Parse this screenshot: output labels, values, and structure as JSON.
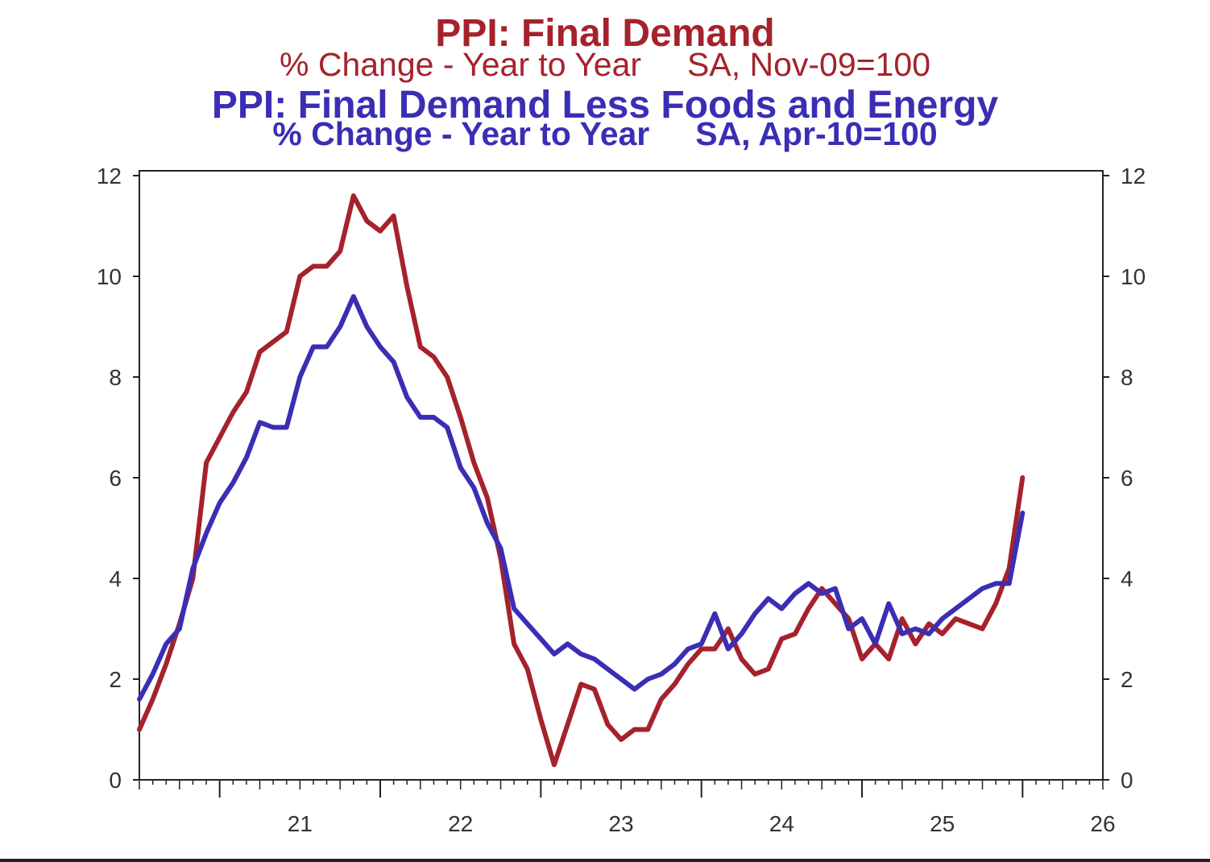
{
  "chart_data": {
    "type": "line",
    "title_1": "PPI: Final Demand",
    "subtitle_1": "% Change - Year to Year     SA, Nov-09=100",
    "title_2": "PPI: Final Demand Less Foods and Energy",
    "subtitle_2": "% Change - Year to Year     SA, Apr-10=100",
    "x_tick_labels": [
      "21",
      "22",
      "23",
      "24",
      "25",
      "26"
    ],
    "y_tick_labels": [
      "0",
      "2",
      "4",
      "6",
      "8",
      "10",
      "12"
    ],
    "ylim": [
      0,
      12
    ],
    "xlim": [
      "2020-07",
      "2026-07"
    ],
    "grid": false,
    "series": [
      {
        "name": "PPI: Final Demand",
        "color": "#a5222c",
        "points": [
          [
            "2020-07",
            1.0
          ],
          [
            "2020-08",
            1.6
          ],
          [
            "2020-09",
            2.3
          ],
          [
            "2020-10",
            3.1
          ],
          [
            "2020-11",
            4.0
          ],
          [
            "2020-12",
            6.3
          ],
          [
            "2021-01",
            6.8
          ],
          [
            "2021-02",
            7.3
          ],
          [
            "2021-03",
            7.7
          ],
          [
            "2021-04",
            8.5
          ],
          [
            "2021-05",
            8.7
          ],
          [
            "2021-06",
            8.9
          ],
          [
            "2021-07",
            10.0
          ],
          [
            "2021-08",
            10.2
          ],
          [
            "2021-09",
            10.2
          ],
          [
            "2021-10",
            10.5
          ],
          [
            "2021-11",
            11.6
          ],
          [
            "2021-12",
            11.1
          ],
          [
            "2022-01",
            10.9
          ],
          [
            "2022-02",
            11.2
          ],
          [
            "2022-03",
            9.8
          ],
          [
            "2022-04",
            8.6
          ],
          [
            "2022-05",
            8.4
          ],
          [
            "2022-06",
            8.0
          ],
          [
            "2022-07",
            7.2
          ],
          [
            "2022-08",
            6.3
          ],
          [
            "2022-09",
            5.6
          ],
          [
            "2022-10",
            4.4
          ],
          [
            "2022-11",
            2.7
          ],
          [
            "2022-12",
            2.2
          ],
          [
            "2023-01",
            1.2
          ],
          [
            "2023-02",
            0.3
          ],
          [
            "2023-03",
            1.1
          ],
          [
            "2023-04",
            1.9
          ],
          [
            "2023-05",
            1.8
          ],
          [
            "2023-06",
            1.1
          ],
          [
            "2023-07",
            0.8
          ],
          [
            "2023-08",
            1.0
          ],
          [
            "2023-09",
            1.0
          ],
          [
            "2023-10",
            1.6
          ],
          [
            "2023-11",
            1.9
          ],
          [
            "2023-12",
            2.3
          ],
          [
            "2024-01",
            2.6
          ],
          [
            "2024-02",
            2.6
          ],
          [
            "2024-03",
            3.0
          ],
          [
            "2024-04",
            2.4
          ],
          [
            "2024-05",
            2.1
          ],
          [
            "2024-06",
            2.2
          ],
          [
            "2024-07",
            2.8
          ],
          [
            "2024-08",
            2.9
          ],
          [
            "2024-09",
            3.4
          ],
          [
            "2024-10",
            3.8
          ],
          [
            "2024-11",
            3.5
          ],
          [
            "2024-12",
            3.2
          ],
          [
            "2025-01",
            2.4
          ],
          [
            "2025-02",
            2.7
          ],
          [
            "2025-03",
            2.4
          ],
          [
            "2025-04",
            3.2
          ],
          [
            "2025-05",
            2.7
          ],
          [
            "2025-06",
            3.1
          ],
          [
            "2025-07",
            2.9
          ],
          [
            "2025-08",
            3.2
          ],
          [
            "2025-09",
            3.1
          ],
          [
            "2025-10",
            3.0
          ],
          [
            "2025-11",
            3.5
          ],
          [
            "2025-12",
            4.2
          ],
          [
            "2026-01",
            6.0
          ]
        ]
      },
      {
        "name": "PPI: Final Demand Less Foods and Energy",
        "color": "#3a2eb4",
        "points": [
          [
            "2020-07",
            1.6
          ],
          [
            "2020-08",
            2.1
          ],
          [
            "2020-09",
            2.7
          ],
          [
            "2020-10",
            3.0
          ],
          [
            "2020-11",
            4.2
          ],
          [
            "2020-12",
            4.9
          ],
          [
            "2021-01",
            5.5
          ],
          [
            "2021-02",
            5.9
          ],
          [
            "2021-03",
            6.4
          ],
          [
            "2021-04",
            7.1
          ],
          [
            "2021-05",
            7.0
          ],
          [
            "2021-06",
            7.0
          ],
          [
            "2021-07",
            8.0
          ],
          [
            "2021-08",
            8.6
          ],
          [
            "2021-09",
            8.6
          ],
          [
            "2021-10",
            9.0
          ],
          [
            "2021-11",
            9.6
          ],
          [
            "2021-12",
            9.0
          ],
          [
            "2022-01",
            8.6
          ],
          [
            "2022-02",
            8.3
          ],
          [
            "2022-03",
            7.6
          ],
          [
            "2022-04",
            7.2
          ],
          [
            "2022-05",
            7.2
          ],
          [
            "2022-06",
            7.0
          ],
          [
            "2022-07",
            6.2
          ],
          [
            "2022-08",
            5.8
          ],
          [
            "2022-09",
            5.1
          ],
          [
            "2022-10",
            4.6
          ],
          [
            "2022-11",
            3.4
          ],
          [
            "2022-12",
            3.1
          ],
          [
            "2023-01",
            2.8
          ],
          [
            "2023-02",
            2.5
          ],
          [
            "2023-03",
            2.7
          ],
          [
            "2023-04",
            2.5
          ],
          [
            "2023-05",
            2.4
          ],
          [
            "2023-06",
            2.2
          ],
          [
            "2023-07",
            2.0
          ],
          [
            "2023-08",
            1.8
          ],
          [
            "2023-09",
            2.0
          ],
          [
            "2023-10",
            2.1
          ],
          [
            "2023-11",
            2.3
          ],
          [
            "2023-12",
            2.6
          ],
          [
            "2024-01",
            2.7
          ],
          [
            "2024-02",
            3.3
          ],
          [
            "2024-03",
            2.6
          ],
          [
            "2024-04",
            2.9
          ],
          [
            "2024-05",
            3.3
          ],
          [
            "2024-06",
            3.6
          ],
          [
            "2024-07",
            3.4
          ],
          [
            "2024-08",
            3.7
          ],
          [
            "2024-09",
            3.9
          ],
          [
            "2024-10",
            3.7
          ],
          [
            "2024-11",
            3.8
          ],
          [
            "2024-12",
            3.0
          ],
          [
            "2025-01",
            3.2
          ],
          [
            "2025-02",
            2.7
          ],
          [
            "2025-03",
            3.5
          ],
          [
            "2025-04",
            2.9
          ],
          [
            "2025-05",
            3.0
          ],
          [
            "2025-06",
            2.9
          ],
          [
            "2025-07",
            3.2
          ],
          [
            "2025-08",
            3.4
          ],
          [
            "2025-09",
            3.6
          ],
          [
            "2025-10",
            3.8
          ],
          [
            "2025-11",
            3.9
          ],
          [
            "2025-12",
            3.9
          ],
          [
            "2026-01",
            5.3
          ]
        ]
      }
    ]
  }
}
